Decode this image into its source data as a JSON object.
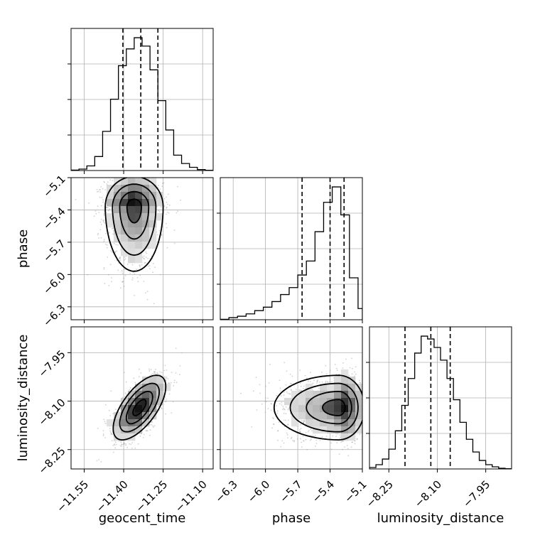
{
  "chart_data": {
    "type": "corner",
    "title": "",
    "parameters": [
      {
        "name": "geocent_time",
        "range": [
          -11.6,
          -11.06
        ],
        "ticks": [
          "-11.55",
          "-11.40",
          "-11.25",
          "-11.10"
        ],
        "tick_values": [
          -11.55,
          -11.4,
          -11.25,
          -11.1
        ],
        "quantiles": [
          -11.403,
          -11.335,
          -11.27
        ]
      },
      {
        "name": "phase",
        "range": [
          -6.42,
          -5.1
        ],
        "ticks": [
          "-6.3",
          "-6.0",
          "-5.7",
          "-5.4",
          "-5.1"
        ],
        "tick_values": [
          -6.3,
          -6.0,
          -5.7,
          -5.4,
          -5.1
        ],
        "quantiles": [
          -5.66,
          -5.4,
          -5.27
        ]
      },
      {
        "name": "luminosity_distance",
        "range": [
          -8.31,
          -7.87
        ],
        "ticks": [
          "-8.25",
          "-8.10",
          "-7.95"
        ],
        "tick_values": [
          -8.25,
          -8.1,
          -7.95
        ],
        "quantiles": [
          -8.2,
          -8.12,
          -8.06
        ]
      }
    ],
    "histograms": [
      {
        "parameter": "geocent_time",
        "bin_edges": [
          -11.6,
          -11.57,
          -11.54,
          -11.51,
          -11.48,
          -11.45,
          -11.42,
          -11.39,
          -11.36,
          -11.33,
          -11.3,
          -11.27,
          -11.24,
          -11.21,
          -11.18,
          -11.15,
          -11.12,
          -11.09,
          -11.06
        ],
        "counts": [
          0.3,
          1.0,
          3.3,
          10.0,
          28.0,
          51.0,
          75.0,
          87.0,
          95.0,
          89.0,
          72.0,
          50.0,
          29.0,
          11.0,
          5.0,
          2.3,
          0.7,
          0.2
        ]
      },
      {
        "parameter": "phase",
        "bin_edges": [
          -6.42,
          -6.34,
          -6.26,
          -6.18,
          -6.1,
          -6.02,
          -5.94,
          -5.86,
          -5.78,
          -5.7,
          -5.62,
          -5.54,
          -5.46,
          -5.38,
          -5.3,
          -5.22,
          -5.14,
          -5.1
        ],
        "counts": [
          0.3,
          1.5,
          2.5,
          4.2,
          6.5,
          9.0,
          13.0,
          18.0,
          23.0,
          32.0,
          42.0,
          63.0,
          84.0,
          95.0,
          75.0,
          30.0,
          8.0
        ]
      },
      {
        "parameter": "luminosity_distance",
        "bin_edges": [
          -8.31,
          -8.29,
          -8.27,
          -8.25,
          -8.23,
          -8.21,
          -8.19,
          -8.17,
          -8.15,
          -8.13,
          -8.11,
          -8.09,
          -8.07,
          -8.05,
          -8.03,
          -8.01,
          -7.99,
          -7.97,
          -7.95,
          -7.93,
          -7.91,
          -7.89,
          -7.87
        ],
        "counts": [
          1.0,
          3.0,
          7.0,
          14.0,
          27.0,
          45.0,
          64.0,
          82.0,
          94.0,
          92.0,
          86.0,
          77.0,
          64.0,
          49.0,
          33.0,
          21.0,
          12.0,
          6.0,
          3.0,
          1.5,
          0.5,
          0.2
        ]
      }
    ],
    "joint_2d": [
      {
        "x": "geocent_time",
        "y": "phase",
        "peak": [
          -11.36,
          -5.37
        ],
        "sd": [
          0.055,
          0.14,
          0.3
        ],
        "correlation": 0
      },
      {
        "x": "geocent_time",
        "y": "luminosity_distance",
        "peak": [
          -11.34,
          -8.12
        ],
        "sd": [
          0.05,
          0.05
        ],
        "correlation": 0.65
      },
      {
        "x": "phase",
        "y": "luminosity_distance",
        "peak": [
          -5.32,
          -8.12
        ],
        "sd": [
          0.12,
          0.3,
          0.05
        ],
        "correlation": 0
      }
    ],
    "grid": true
  }
}
